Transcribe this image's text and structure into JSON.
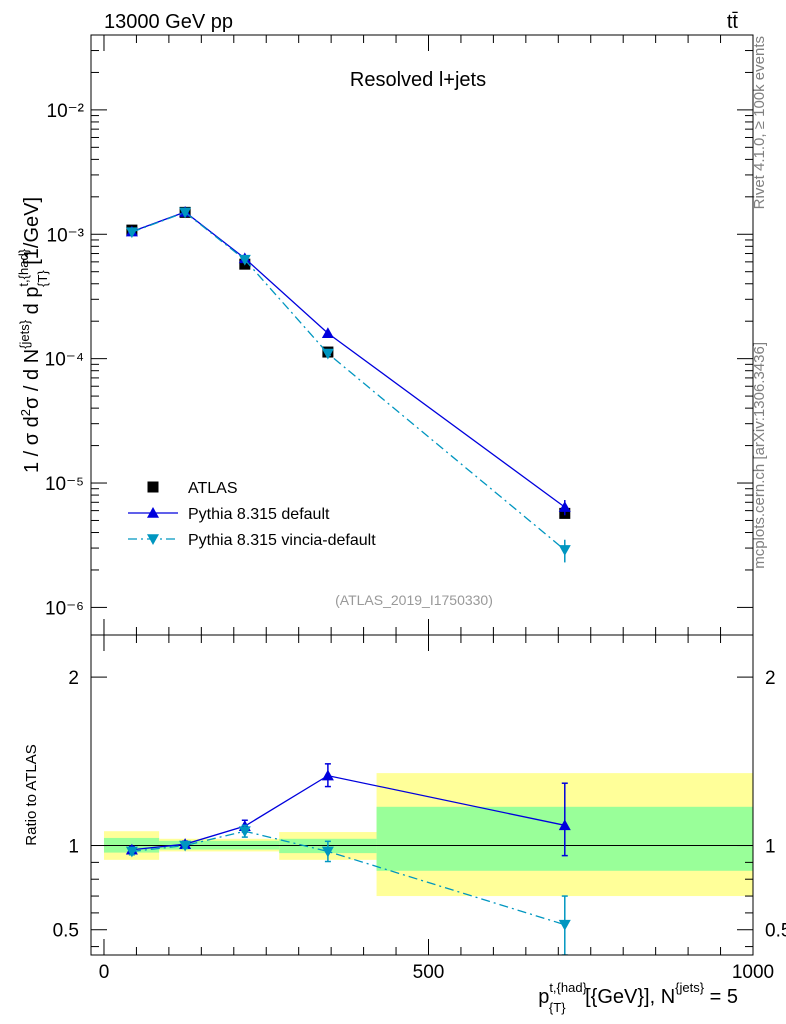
{
  "header": {
    "energy_label": "13000 GeV pp",
    "process_label": "tt̄",
    "side_label_top": "Rivet 4.1.0, ≥ 100k events",
    "side_label_bottom": "mcplots.cern.ch [arXiv:1306.3436]"
  },
  "chart_data": [
    {
      "type": "line",
      "title": "Resolved l+jets",
      "analysis_tag": "(ATLAS_2019_I1750330)",
      "ylabel": "1 / σ d²σ / d N^{jets} d p^{t,{had}}_{T} [1/GeV]",
      "yscale": "log",
      "ylim": [
        6e-07,
        0.04
      ],
      "xlim": [
        -20,
        1000
      ],
      "ytick_labels": [
        "10⁻⁶",
        "10⁻⁵",
        "10⁻⁴",
        "10⁻³",
        "10⁻²"
      ],
      "legend_position": "bottom-left",
      "series": [
        {
          "name": "ATLAS",
          "color": "#000000",
          "marker": "square",
          "x": [
            43,
            125,
            217,
            345,
            710
          ],
          "y": [
            0.00108,
            0.0015,
            0.000575,
            0.000113,
            5.7e-06
          ]
        },
        {
          "name": "Pythia 8.315 default",
          "color": "#0000dd",
          "marker": "triangle-up",
          "line": "solid",
          "x": [
            43,
            125,
            217,
            345,
            710
          ],
          "y": [
            0.00105,
            0.00151,
            0.00064,
            0.00016,
            6.4e-06
          ],
          "yerr": [
            0,
            0,
            0,
            0,
            9e-07
          ]
        },
        {
          "name": "Pythia 8.315 vincia-default",
          "color": "#0096c0",
          "marker": "triangle-down",
          "line": "dashdot",
          "x": [
            43,
            125,
            217,
            345,
            710
          ],
          "y": [
            0.00104,
            0.0015,
            0.000625,
            0.00011,
            2.9e-06
          ],
          "yerr": [
            0,
            0,
            0,
            0,
            6e-07
          ]
        }
      ]
    },
    {
      "type": "line",
      "ylabel": "Ratio to ATLAS",
      "xlabel": "p^{t,{had}}_{T} [{GeV}], N^{jets} = 5",
      "ylim": [
        0.35,
        2.25
      ],
      "xlim": [
        -20,
        1000
      ],
      "ytick_labels": [
        "0.5",
        "1",
        "2"
      ],
      "xtick_labels": [
        "0",
        "500",
        "1000"
      ],
      "reference_line": 1,
      "uncertainty_bands": [
        {
          "x_low": 0,
          "x_high": 85,
          "inner": [
            0.958,
            1.045
          ],
          "outer": [
            0.915,
            1.085
          ]
        },
        {
          "x_low": 85,
          "x_high": 270,
          "inner": [
            0.976,
            1.028
          ],
          "outer": [
            0.965,
            1.04
          ]
        },
        {
          "x_low": 270,
          "x_high": 420,
          "inner": [
            0.955,
            1.04
          ],
          "outer": [
            0.915,
            1.08
          ]
        },
        {
          "x_low": 420,
          "x_high": 1000,
          "inner": [
            0.85,
            1.23
          ],
          "outer": [
            0.7,
            1.43
          ]
        }
      ],
      "series": [
        {
          "name": "Pythia 8.315 default",
          "color": "#0000dd",
          "marker": "triangle-up",
          "line": "solid",
          "x": [
            43,
            125,
            217,
            345,
            710
          ],
          "y": [
            0.975,
            1.008,
            1.115,
            1.415,
            1.12
          ],
          "ylow": [
            0.955,
            0.99,
            1.08,
            1.35,
            0.94
          ],
          "yhigh": [
            0.995,
            1.026,
            1.15,
            1.485,
            1.37
          ]
        },
        {
          "name": "Pythia 8.315 vincia-default",
          "color": "#0096c0",
          "marker": "triangle-down",
          "line": "dashdot",
          "x": [
            43,
            125,
            217,
            345,
            710
          ],
          "y": [
            0.965,
            1.0,
            1.085,
            0.965,
            0.53
          ],
          "ylow": [
            0.945,
            0.983,
            1.05,
            0.905,
            0.35
          ],
          "yhigh": [
            0.985,
            1.018,
            1.12,
            1.025,
            0.7
          ]
        }
      ]
    }
  ]
}
